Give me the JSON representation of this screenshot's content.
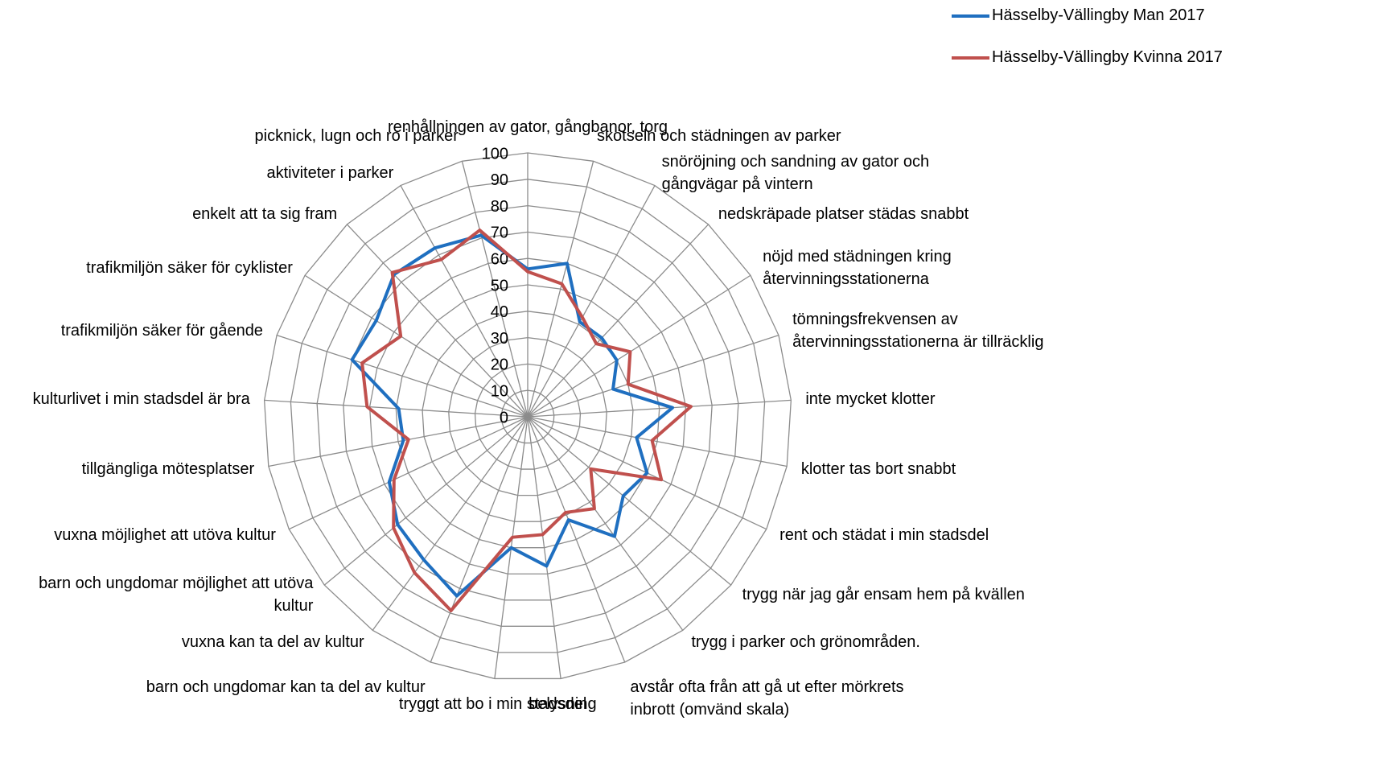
{
  "chart_data": {
    "type": "radar",
    "categories": [
      "renhållningen av gator, gångbanor, torg",
      "skötseln och städningen av parker",
      "snöröjning och sandning av gator och gångvägar på vintern",
      "nedskräpade platser städas snabbt",
      "nöjd med städningen kring återvinningsstationerna",
      "tömningsfrekvensen av återvinningsstationerna är tillräcklig",
      "inte mycket klotter",
      "klotter tas bort snabbt",
      "rent och städat i min stadsdel",
      "trygg när jag går ensam hem på kvällen",
      "trygg i parker och grönområden.",
      "avstår ofta från att gå ut efter mörkrets inbrott (omvänd skala)",
      "belysning",
      "tryggt att bo i min stadsdel",
      "barn och ungdomar kan ta del av kultur",
      "vuxna kan ta del av kultur",
      "barn och ungdomar möjlighet att utöva kultur",
      "vuxna möjlighet att utöva kultur",
      "tillgängliga mötesplatser",
      "kulturlivet i min stadsdel är bra",
      "trafikmiljön säker för gående",
      "trafikmiljön säker för cyklister",
      "enkelt att ta sig fram",
      "aktiviteter i parker",
      "picknick, lugn och ro i parker"
    ],
    "series": [
      {
        "name": "Hässelby-Vällingby Man 2017",
        "color": "#1f6fc0",
        "values": [
          56,
          60,
          41,
          41,
          40,
          34,
          55,
          42,
          50,
          47,
          56,
          42,
          57,
          50,
          73,
          67,
          64,
          58,
          48,
          49,
          70,
          68,
          74,
          73,
          71
        ]
      },
      {
        "name": "Hässelby-Vällingby Kvinna 2017",
        "color": "#c0504d",
        "values": [
          55,
          52,
          43,
          38,
          46,
          40,
          62,
          48,
          56,
          31,
          43,
          39,
          45,
          46,
          79,
          73,
          66,
          56,
          46,
          61,
          66,
          57,
          75,
          68,
          73
        ]
      }
    ],
    "ylim": [
      0,
      100
    ],
    "yticks": [
      0,
      10,
      20,
      30,
      40,
      50,
      60,
      70,
      80,
      90,
      100
    ],
    "grid": true,
    "legend": "top-right"
  }
}
